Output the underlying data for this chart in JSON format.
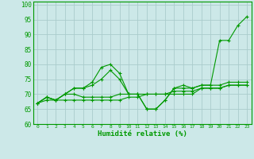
{
  "xlabel": "Humidité relative (%)",
  "xlim": [
    -0.5,
    23.5
  ],
  "ylim": [
    60,
    101
  ],
  "yticks": [
    60,
    65,
    70,
    75,
    80,
    85,
    90,
    95,
    100
  ],
  "xticks": [
    0,
    1,
    2,
    3,
    4,
    5,
    6,
    7,
    8,
    9,
    10,
    11,
    12,
    13,
    14,
    15,
    16,
    17,
    18,
    19,
    20,
    21,
    22,
    23
  ],
  "background_color": "#cce8e8",
  "grid_color": "#aacccc",
  "line_color": "#009900",
  "lines": [
    [
      67,
      69,
      68,
      70,
      72,
      72,
      74,
      79,
      80,
      77,
      70,
      70,
      65,
      65,
      68,
      72,
      73,
      72,
      73,
      73,
      88,
      88,
      93,
      96
    ],
    [
      67,
      69,
      68,
      70,
      72,
      72,
      73,
      75,
      78,
      75,
      70,
      70,
      65,
      65,
      68,
      72,
      72,
      72,
      73,
      73,
      73,
      74,
      74,
      74
    ],
    [
      67,
      69,
      68,
      70,
      70,
      69,
      69,
      69,
      69,
      70,
      70,
      70,
      70,
      70,
      70,
      71,
      71,
      71,
      72,
      72,
      72,
      73,
      73,
      73
    ],
    [
      67,
      68,
      68,
      68,
      68,
      68,
      68,
      68,
      68,
      68,
      69,
      69,
      70,
      70,
      70,
      70,
      70,
      70,
      72,
      72,
      72,
      73,
      73,
      73
    ]
  ]
}
